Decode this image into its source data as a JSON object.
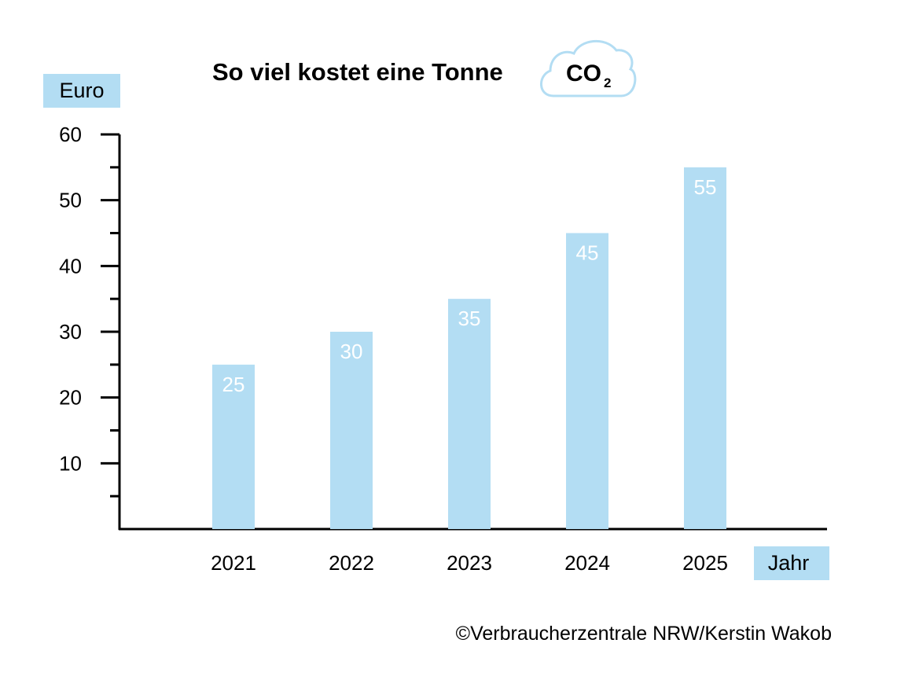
{
  "chart_data": {
    "type": "bar",
    "title": "So viel kostet eine Tonne",
    "title_badge": {
      "text": "CO",
      "subscript": "2"
    },
    "ylabel": "Euro",
    "xlabel": "Jahr",
    "categories": [
      "2021",
      "2022",
      "2023",
      "2024",
      "2025"
    ],
    "values": [
      25,
      30,
      35,
      45,
      55
    ],
    "ylim": [
      0,
      60
    ],
    "y_ticks": [
      10,
      20,
      30,
      40,
      50,
      60
    ],
    "y_minor_step": 5,
    "data_labels": true,
    "grid": false,
    "bar_color": "#b3ddf3"
  },
  "credit": "©Verbraucherzentrale NRW/Kerstin Wakob"
}
